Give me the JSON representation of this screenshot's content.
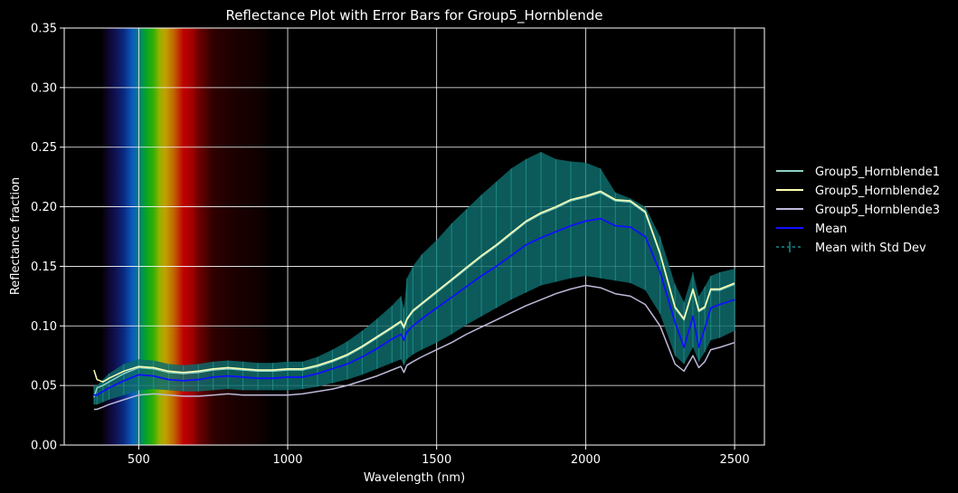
{
  "chart_data": {
    "type": "line",
    "title": "Reflectance Plot with Error Bars for Group5_Hornblende",
    "xlabel": "Wavelength (nm)",
    "ylabel": "Reflectance fraction",
    "xlim": [
      250,
      2600
    ],
    "ylim": [
      0,
      0.35
    ],
    "xticks": [
      500,
      1000,
      1500,
      2000,
      2500
    ],
    "yticks": [
      0.0,
      0.05,
      0.1,
      0.15,
      0.2,
      0.25,
      0.3,
      0.35
    ],
    "xtick_labels": [
      "500",
      "1000",
      "1500",
      "2000",
      "2500"
    ],
    "ytick_labels": [
      "0.00",
      "0.05",
      "0.10",
      "0.15",
      "0.20",
      "0.25",
      "0.30",
      "0.35"
    ],
    "grid": true,
    "legend_position": "right",
    "background": "#000000",
    "visible_spectrum_band": {
      "wavelengths": [
        380,
        420,
        450,
        480,
        500,
        520,
        550,
        570,
        590,
        620,
        650,
        680,
        700,
        750,
        800,
        850,
        900,
        940
      ],
      "colors": [
        "#080010",
        "#101050",
        "#0a2a80",
        "#0a5cc0",
        "#0a7a80",
        "#00a030",
        "#33b000",
        "#99b000",
        "#c0a000",
        "#c06000",
        "#c00000",
        "#a00000",
        "#700000",
        "#300000",
        "#200000",
        "#180000",
        "#100000",
        "#050000"
      ]
    },
    "series": [
      {
        "name": "Group5_Hornblende1",
        "color": "#8dd3c7",
        "x": [
          350,
          360,
          380,
          400,
          450,
          500,
          550,
          600,
          650,
          700,
          750,
          800,
          850,
          900,
          950,
          1000,
          1050,
          1100,
          1150,
          1200,
          1250,
          1300,
          1350,
          1380,
          1390,
          1400,
          1420,
          1450,
          1500,
          1550,
          1600,
          1650,
          1700,
          1750,
          1800,
          1850,
          1900,
          1950,
          2000,
          2050,
          2100,
          2150,
          2200,
          2250,
          2300,
          2330,
          2360,
          2380,
          2400,
          2420,
          2450,
          2500
        ],
        "y": [
          0.04,
          0.048,
          0.05,
          0.053,
          0.06,
          0.065,
          0.064,
          0.061,
          0.06,
          0.061,
          0.063,
          0.064,
          0.063,
          0.062,
          0.062,
          0.063,
          0.063,
          0.066,
          0.07,
          0.075,
          0.082,
          0.09,
          0.098,
          0.103,
          0.098,
          0.105,
          0.112,
          0.118,
          0.128,
          0.138,
          0.148,
          0.158,
          0.167,
          0.177,
          0.187,
          0.194,
          0.199,
          0.205,
          0.208,
          0.212,
          0.205,
          0.204,
          0.195,
          0.16,
          0.115,
          0.105,
          0.13,
          0.112,
          0.115,
          0.13,
          0.13,
          0.135
        ]
      },
      {
        "name": "Group5_Hornblende2",
        "color": "#ffffb3",
        "x": [
          350,
          360,
          380,
          400,
          450,
          500,
          550,
          600,
          650,
          700,
          750,
          800,
          850,
          900,
          950,
          1000,
          1050,
          1100,
          1150,
          1200,
          1250,
          1300,
          1350,
          1380,
          1390,
          1400,
          1420,
          1450,
          1500,
          1550,
          1600,
          1650,
          1700,
          1750,
          1800,
          1850,
          1900,
          1950,
          2000,
          2050,
          2100,
          2150,
          2200,
          2250,
          2300,
          2330,
          2360,
          2380,
          2400,
          2420,
          2450,
          2500
        ],
        "y": [
          0.063,
          0.055,
          0.053,
          0.056,
          0.062,
          0.066,
          0.065,
          0.062,
          0.061,
          0.062,
          0.064,
          0.065,
          0.064,
          0.063,
          0.063,
          0.064,
          0.064,
          0.067,
          0.071,
          0.076,
          0.083,
          0.091,
          0.099,
          0.104,
          0.099,
          0.106,
          0.113,
          0.119,
          0.129,
          0.139,
          0.149,
          0.159,
          0.168,
          0.178,
          0.188,
          0.195,
          0.2,
          0.206,
          0.209,
          0.213,
          0.206,
          0.205,
          0.196,
          0.161,
          0.116,
          0.106,
          0.131,
          0.113,
          0.116,
          0.131,
          0.131,
          0.136
        ]
      },
      {
        "name": "Group5_Hornblende3",
        "color": "#bebada",
        "x": [
          350,
          360,
          380,
          400,
          450,
          500,
          550,
          600,
          650,
          700,
          750,
          800,
          850,
          900,
          950,
          1000,
          1050,
          1100,
          1150,
          1200,
          1250,
          1300,
          1350,
          1380,
          1390,
          1400,
          1420,
          1450,
          1500,
          1550,
          1600,
          1650,
          1700,
          1750,
          1800,
          1850,
          1900,
          1950,
          2000,
          2050,
          2100,
          2150,
          2200,
          2250,
          2300,
          2330,
          2360,
          2380,
          2400,
          2420,
          2450,
          2500
        ],
        "y": [
          0.03,
          0.03,
          0.032,
          0.034,
          0.038,
          0.042,
          0.043,
          0.042,
          0.041,
          0.041,
          0.042,
          0.043,
          0.042,
          0.042,
          0.042,
          0.042,
          0.043,
          0.045,
          0.047,
          0.05,
          0.054,
          0.058,
          0.063,
          0.066,
          0.061,
          0.067,
          0.07,
          0.074,
          0.08,
          0.086,
          0.093,
          0.099,
          0.105,
          0.111,
          0.117,
          0.122,
          0.127,
          0.131,
          0.134,
          0.132,
          0.127,
          0.125,
          0.118,
          0.1,
          0.068,
          0.062,
          0.075,
          0.065,
          0.07,
          0.08,
          0.082,
          0.086
        ]
      },
      {
        "name": "Mean",
        "color": "#1010ff",
        "x": [
          350,
          360,
          380,
          400,
          450,
          500,
          550,
          600,
          650,
          700,
          750,
          800,
          850,
          900,
          950,
          1000,
          1050,
          1100,
          1150,
          1200,
          1250,
          1300,
          1350,
          1380,
          1390,
          1400,
          1420,
          1450,
          1500,
          1550,
          1600,
          1650,
          1700,
          1750,
          1800,
          1850,
          1900,
          1950,
          2000,
          2050,
          2100,
          2150,
          2200,
          2250,
          2300,
          2330,
          2360,
          2380,
          2400,
          2420,
          2450,
          2500
        ],
        "y": [
          0.042,
          0.042,
          0.045,
          0.048,
          0.054,
          0.059,
          0.058,
          0.055,
          0.054,
          0.055,
          0.057,
          0.058,
          0.057,
          0.056,
          0.056,
          0.057,
          0.057,
          0.06,
          0.064,
          0.068,
          0.074,
          0.081,
          0.089,
          0.093,
          0.088,
          0.095,
          0.1,
          0.106,
          0.115,
          0.124,
          0.133,
          0.142,
          0.15,
          0.159,
          0.168,
          0.174,
          0.179,
          0.184,
          0.188,
          0.19,
          0.184,
          0.183,
          0.175,
          0.145,
          0.103,
          0.082,
          0.108,
          0.082,
          0.098,
          0.115,
          0.118,
          0.122
        ]
      }
    ],
    "error_band": {
      "name": "Mean with Std Dev",
      "color": "#0e6a6a",
      "x": [
        350,
        360,
        380,
        400,
        450,
        500,
        550,
        600,
        650,
        700,
        750,
        800,
        850,
        900,
        950,
        1000,
        1050,
        1100,
        1150,
        1200,
        1250,
        1300,
        1350,
        1380,
        1390,
        1400,
        1420,
        1450,
        1500,
        1550,
        1600,
        1650,
        1700,
        1750,
        1800,
        1850,
        1900,
        1950,
        2000,
        2050,
        2100,
        2150,
        2200,
        2250,
        2300,
        2330,
        2360,
        2380,
        2400,
        2420,
        2450,
        2500
      ],
      "upper": [
        0.05,
        0.05,
        0.055,
        0.06,
        0.068,
        0.072,
        0.071,
        0.068,
        0.067,
        0.068,
        0.07,
        0.071,
        0.07,
        0.069,
        0.069,
        0.07,
        0.07,
        0.074,
        0.08,
        0.087,
        0.096,
        0.106,
        0.117,
        0.125,
        0.115,
        0.14,
        0.15,
        0.16,
        0.172,
        0.186,
        0.198,
        0.21,
        0.221,
        0.232,
        0.24,
        0.246,
        0.24,
        0.238,
        0.237,
        0.232,
        0.212,
        0.207,
        0.2,
        0.175,
        0.135,
        0.12,
        0.145,
        0.125,
        0.133,
        0.142,
        0.145,
        0.148
      ],
      "lower": [
        0.034,
        0.034,
        0.036,
        0.038,
        0.042,
        0.046,
        0.047,
        0.046,
        0.045,
        0.045,
        0.046,
        0.047,
        0.046,
        0.046,
        0.046,
        0.046,
        0.047,
        0.049,
        0.052,
        0.055,
        0.059,
        0.064,
        0.069,
        0.072,
        0.067,
        0.072,
        0.076,
        0.08,
        0.086,
        0.093,
        0.101,
        0.108,
        0.115,
        0.122,
        0.128,
        0.134,
        0.137,
        0.14,
        0.142,
        0.14,
        0.138,
        0.136,
        0.13,
        0.11,
        0.075,
        0.068,
        0.082,
        0.07,
        0.078,
        0.088,
        0.09,
        0.096
      ]
    }
  }
}
